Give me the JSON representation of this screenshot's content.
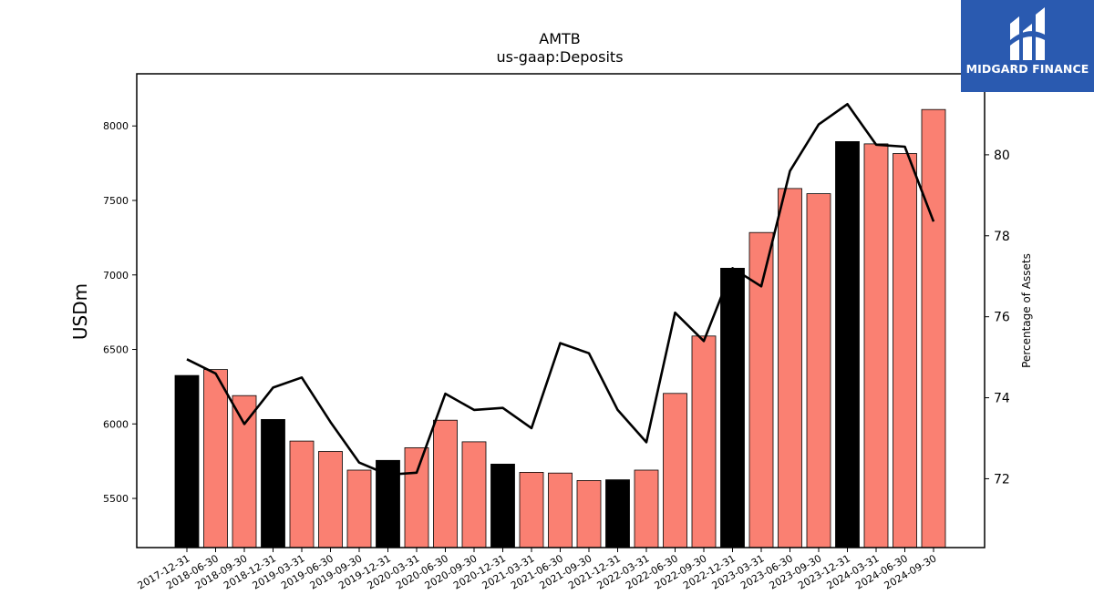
{
  "brand": {
    "name": "MIDGARD FINANCE",
    "color": "#2a5ab0"
  },
  "chart_data": {
    "type": "bar",
    "title": "AMTB",
    "subtitle": "us-gaap:Deposits",
    "ylabel": "USDm",
    "y2label": "Percentage of Assets",
    "ylim": [
      5170,
      8350
    ],
    "y2lim": [
      70.3,
      82.0
    ],
    "yticks": [
      5500,
      6000,
      6500,
      7000,
      7500,
      8000
    ],
    "y2ticks": [
      72,
      74,
      76,
      78,
      80
    ],
    "categories": [
      "2017-12-31",
      "2018-06-30",
      "2018-09-30",
      "2018-12-31",
      "2019-03-31",
      "2019-06-30",
      "2019-09-30",
      "2019-12-31",
      "2020-03-31",
      "2020-06-30",
      "2020-09-30",
      "2020-12-31",
      "2021-03-31",
      "2021-06-30",
      "2021-09-30",
      "2021-12-31",
      "2022-03-31",
      "2022-06-30",
      "2022-09-30",
      "2022-12-31",
      "2023-03-31",
      "2023-06-30",
      "2023-09-30",
      "2023-12-31",
      "2024-03-31",
      "2024-06-30",
      "2024-09-30"
    ],
    "series": [
      {
        "type": "bar",
        "values": [
          6325,
          6365,
          6190,
          6030,
          5885,
          5815,
          5690,
          5755,
          5840,
          6025,
          5880,
          5730,
          5675,
          5670,
          5620,
          5625,
          5690,
          6205,
          6590,
          7045,
          7285,
          7580,
          7545,
          7895,
          7880,
          7815,
          8110
        ],
        "colors": [
          "#000000",
          "#fa8072",
          "#fa8072",
          "#000000",
          "#fa8072",
          "#fa8072",
          "#fa8072",
          "#000000",
          "#fa8072",
          "#fa8072",
          "#fa8072",
          "#000000",
          "#fa8072",
          "#fa8072",
          "#fa8072",
          "#000000",
          "#fa8072",
          "#fa8072",
          "#fa8072",
          "#000000",
          "#fa8072",
          "#fa8072",
          "#fa8072",
          "#000000",
          "#fa8072",
          "#fa8072",
          "#fa8072"
        ]
      },
      {
        "type": "line",
        "axis": "secondary",
        "color": "#000000",
        "values": [
          74.95,
          74.6,
          73.35,
          74.25,
          74.5,
          73.4,
          72.4,
          72.1,
          72.15,
          74.1,
          73.7,
          73.75,
          73.25,
          75.35,
          75.1,
          73.7,
          72.9,
          76.1,
          75.4,
          77.2,
          76.75,
          79.6,
          80.75,
          81.25,
          80.25,
          80.2,
          78.35
        ]
      }
    ],
    "grid": false,
    "legend": "none"
  }
}
